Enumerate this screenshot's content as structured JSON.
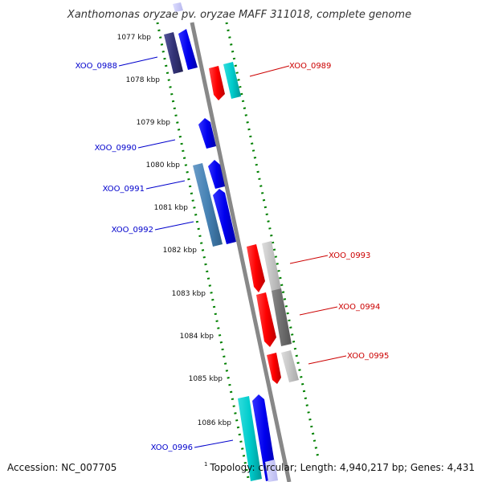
{
  "title": "Xanthomonas oryzae pv. oryzae MAFF 311018, complete genome",
  "ticks": [
    "1077 kbp",
    "1078 kbp",
    "1079 kbp",
    "1080 kbp",
    "1081 kbp",
    "1082 kbp",
    "1083 kbp",
    "1084 kbp",
    "1085 kbp",
    "1086 kbp"
  ],
  "genes": [
    {
      "name": "XOO_0988",
      "strand": "-",
      "color": "#0000ff"
    },
    {
      "name": "XOO_0989",
      "strand": "+",
      "color": "#ff0000"
    },
    {
      "name": "XOO_0990",
      "strand": "-",
      "color": "#0000ff"
    },
    {
      "name": "XOO_0991",
      "strand": "-",
      "color": "#0000ff"
    },
    {
      "name": "XOO_0992",
      "strand": "-",
      "color": "#0000ff"
    },
    {
      "name": "XOO_0993",
      "strand": "+",
      "color": "#ff0000"
    },
    {
      "name": "XOO_0994",
      "strand": "+",
      "color": "#ff0000"
    },
    {
      "name": "XOO_0995",
      "strand": "+",
      "color": "#ff0000"
    },
    {
      "name": "XOO_0996",
      "strand": "-",
      "color": "#0000ff"
    }
  ],
  "footer": {
    "accession": "Accession: NC_007705",
    "superscript": "1",
    "topology": "Topology: circular; Length: 4,940,217 bp; Genes: 4,431"
  },
  "colors": {
    "backbone": "#888888",
    "forward_gene": "#ff0000",
    "reverse_gene": "#0000ff",
    "gc_dots": "#008000",
    "cog_cyan": "#00cccc",
    "cog_gray": "#999999",
    "cog_steel": "#4682b4",
    "cog_navy": "#333377"
  }
}
